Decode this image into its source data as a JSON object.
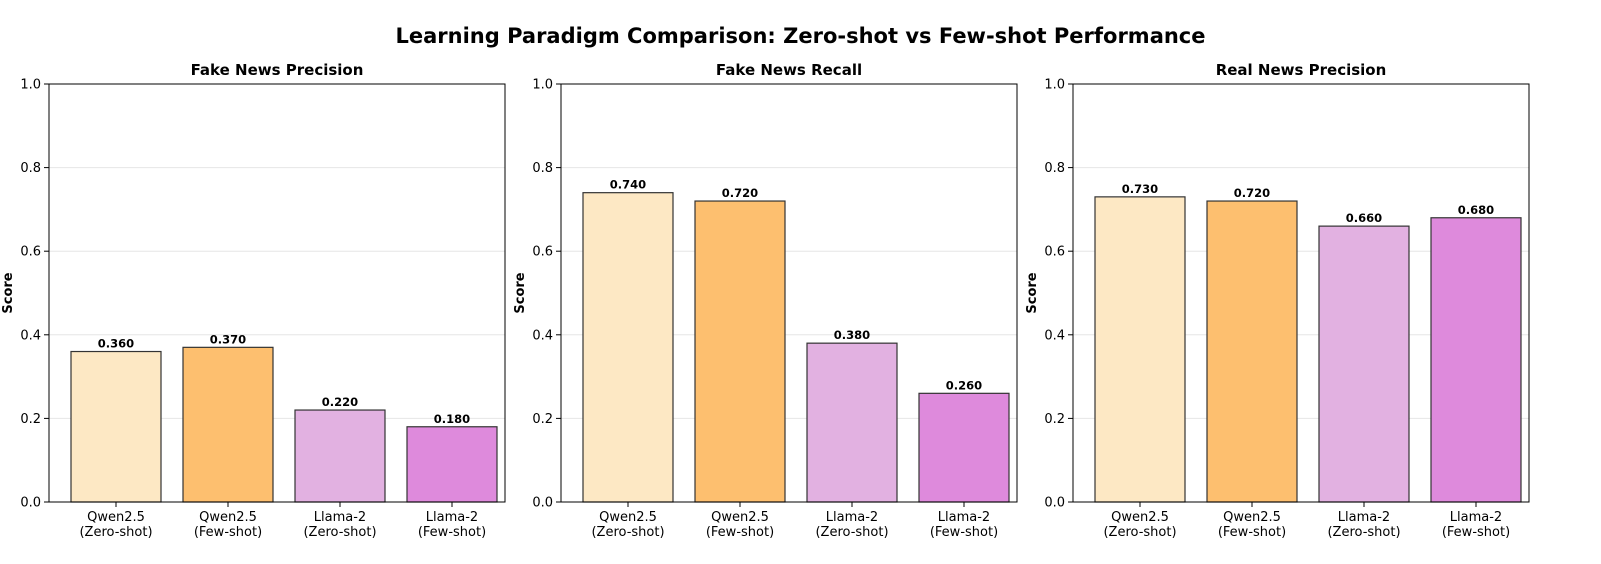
{
  "title": "Learning Paradigm Comparison: Zero-shot vs Few-shot Performance",
  "colors": {
    "qwen_zero": "#FDE8C4",
    "qwen_few": "#FDBF6F",
    "llama_zero": "#E2B1E1",
    "llama_few": "#DE8ADC"
  },
  "chart_data": [
    {
      "type": "bar",
      "title": "Fake News Precision",
      "ylabel": "Score",
      "ylim": [
        0,
        1.0
      ],
      "yticks": [
        "0.0",
        "0.2",
        "0.4",
        "0.6",
        "0.8",
        "1.0"
      ],
      "grid": true,
      "categories": [
        [
          "Qwen2.5",
          "(Zero-shot)"
        ],
        [
          "Qwen2.5",
          "(Few-shot)"
        ],
        [
          "Llama-2",
          "(Zero-shot)"
        ],
        [
          "Llama-2",
          "(Few-shot)"
        ]
      ],
      "values": [
        0.36,
        0.37,
        0.22,
        0.18
      ],
      "value_labels": [
        "0.360",
        "0.370",
        "0.220",
        "0.180"
      ]
    },
    {
      "type": "bar",
      "title": "Fake News Recall",
      "ylabel": "Score",
      "ylim": [
        0,
        1.0
      ],
      "yticks": [
        "0.0",
        "0.2",
        "0.4",
        "0.6",
        "0.8",
        "1.0"
      ],
      "grid": true,
      "categories": [
        [
          "Qwen2.5",
          "(Zero-shot)"
        ],
        [
          "Qwen2.5",
          "(Few-shot)"
        ],
        [
          "Llama-2",
          "(Zero-shot)"
        ],
        [
          "Llama-2",
          "(Few-shot)"
        ]
      ],
      "values": [
        0.74,
        0.72,
        0.38,
        0.26
      ],
      "value_labels": [
        "0.740",
        "0.720",
        "0.380",
        "0.260"
      ]
    },
    {
      "type": "bar",
      "title": "Real News Precision",
      "ylabel": "Score",
      "ylim": [
        0,
        1.0
      ],
      "yticks": [
        "0.0",
        "0.2",
        "0.4",
        "0.6",
        "0.8",
        "1.0"
      ],
      "grid": true,
      "categories": [
        [
          "Qwen2.5",
          "(Zero-shot)"
        ],
        [
          "Qwen2.5",
          "(Few-shot)"
        ],
        [
          "Llama-2",
          "(Zero-shot)"
        ],
        [
          "Llama-2",
          "(Few-shot)"
        ]
      ],
      "values": [
        0.73,
        0.72,
        0.66,
        0.68
      ],
      "value_labels": [
        "0.730",
        "0.720",
        "0.660",
        "0.680"
      ]
    }
  ]
}
